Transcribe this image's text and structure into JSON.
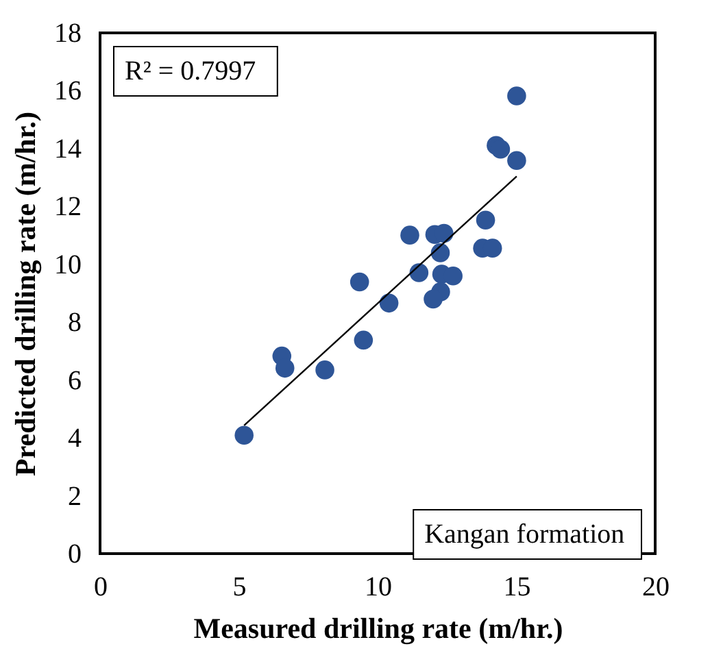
{
  "chart_data": {
    "type": "scatter",
    "xlabel": "Measured drilling rate (m/hr.)",
    "ylabel": "Predicted drilling rate (m/hr.)",
    "xlim": [
      0,
      20
    ],
    "xticks": [
      0,
      5,
      10,
      15,
      20
    ],
    "ylim": [
      0,
      18
    ],
    "yticks": [
      0,
      2,
      4,
      6,
      8,
      10,
      12,
      14,
      16,
      18
    ],
    "grid": false,
    "marker": "circle",
    "annotations": [
      "R² = 0.7997",
      "Kangan formation"
    ],
    "series": [
      {
        "color": "#2e5597",
        "x": [
          5.19,
          6.55,
          6.66,
          8.1,
          9.49,
          9.35,
          10.41,
          11.16,
          11.49,
          12.06,
          12.39,
          12.26,
          12.31,
          12.72,
          12.27,
          12.0,
          13.89,
          13.78,
          14.14,
          14.27,
          14.43,
          15.01,
          15.01
        ],
        "values": [
          4.09,
          6.83,
          6.41,
          6.35,
          7.38,
          9.39,
          8.66,
          11.01,
          9.71,
          11.03,
          11.07,
          10.4,
          9.66,
          9.6,
          9.05,
          8.8,
          11.53,
          10.56,
          10.56,
          14.11,
          13.98,
          13.59,
          15.82
        ]
      },
      {
        "type": "line",
        "color": "#000000",
        "marker": "none",
        "line_style": "solid",
        "x": [
          5.19,
          15.01
        ],
        "values": [
          4.43,
          13.04
        ]
      }
    ]
  }
}
